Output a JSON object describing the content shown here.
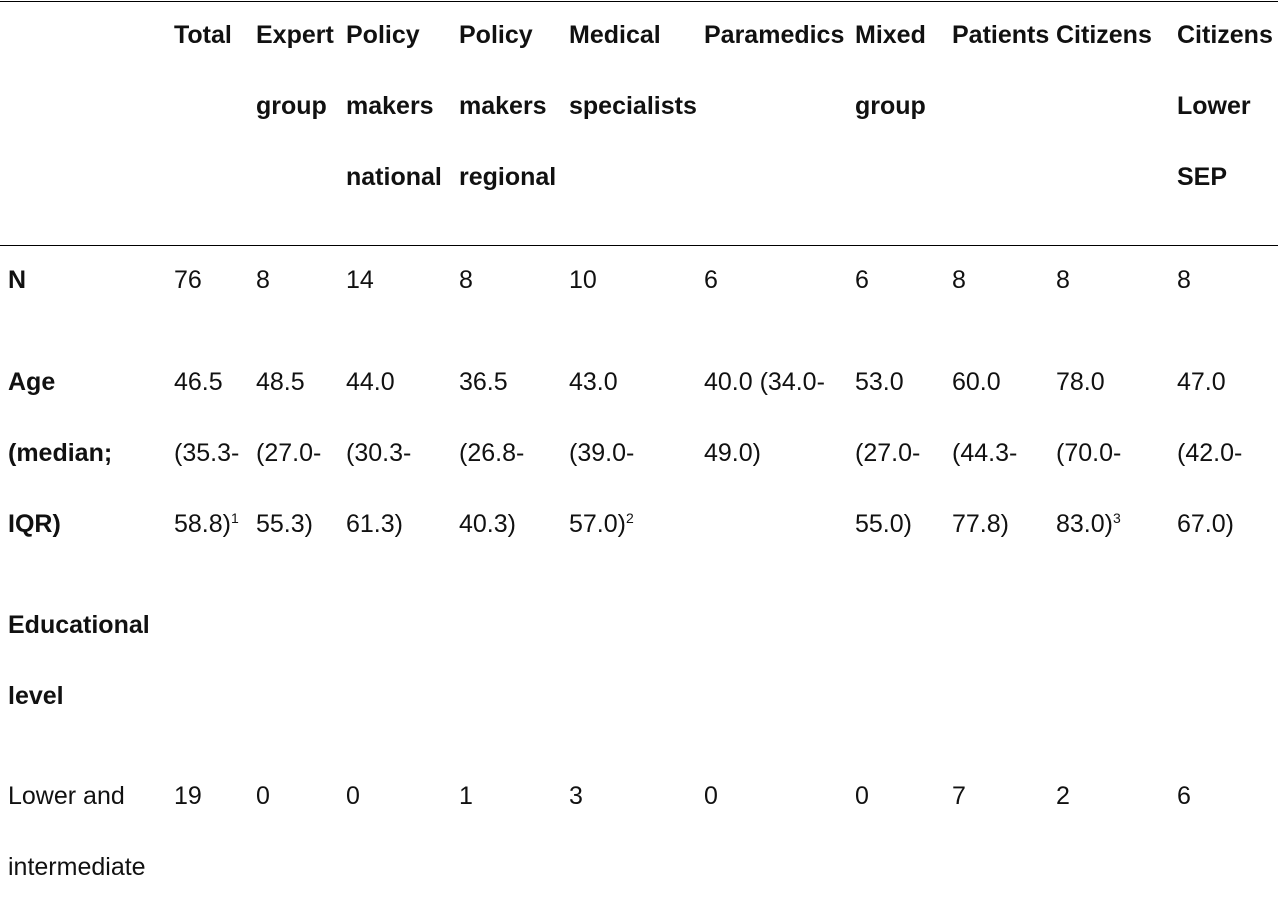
{
  "columns": [
    [
      "Total"
    ],
    [
      "Expert",
      "group"
    ],
    [
      "Policy",
      "makers",
      "national"
    ],
    [
      "Policy",
      "makers",
      "regional"
    ],
    [
      "Medical",
      "specialists"
    ],
    [
      "Paramedics"
    ],
    [
      "Mixed",
      "group"
    ],
    [
      "Patients"
    ],
    [
      "Citizens"
    ],
    [
      "Citizens",
      "Lower",
      "SEP"
    ]
  ],
  "rows": {
    "n": {
      "label": "N",
      "values": [
        "76",
        "8",
        "14",
        "8",
        "10",
        "6",
        "6",
        "8",
        "8",
        "8"
      ]
    },
    "age": {
      "label_lines": [
        "Age",
        "(median;",
        "IQR)"
      ],
      "values": [
        [
          "46.5",
          "(35.3-",
          "58.8)"
        ],
        [
          "48.5",
          "(27.0-",
          "55.3)"
        ],
        [
          "44.0",
          "(30.3-",
          "61.3)"
        ],
        [
          "36.5",
          "(26.8-",
          "40.3)"
        ],
        [
          "43.0",
          "(39.0-",
          "57.0)"
        ],
        [
          "40.0 (34.0-",
          "49.0)"
        ],
        [
          "53.0",
          "(27.0-",
          "55.0)"
        ],
        [
          "60.0",
          "(44.3-",
          "77.8)"
        ],
        [
          "78.0",
          "(70.0-",
          "83.0)"
        ],
        [
          "47.0",
          "(42.0-",
          "67.0)"
        ]
      ],
      "footnotes": {
        "0": "1",
        "4": "2",
        "8": "3"
      }
    },
    "education": {
      "label_lines": [
        "Educational",
        "level"
      ]
    },
    "lower_intermediate": {
      "label_lines": [
        "Lower and",
        "intermediate"
      ],
      "values": [
        "19",
        "0",
        "0",
        "1",
        "3",
        "0",
        "0",
        "7",
        "2",
        "6"
      ]
    }
  }
}
